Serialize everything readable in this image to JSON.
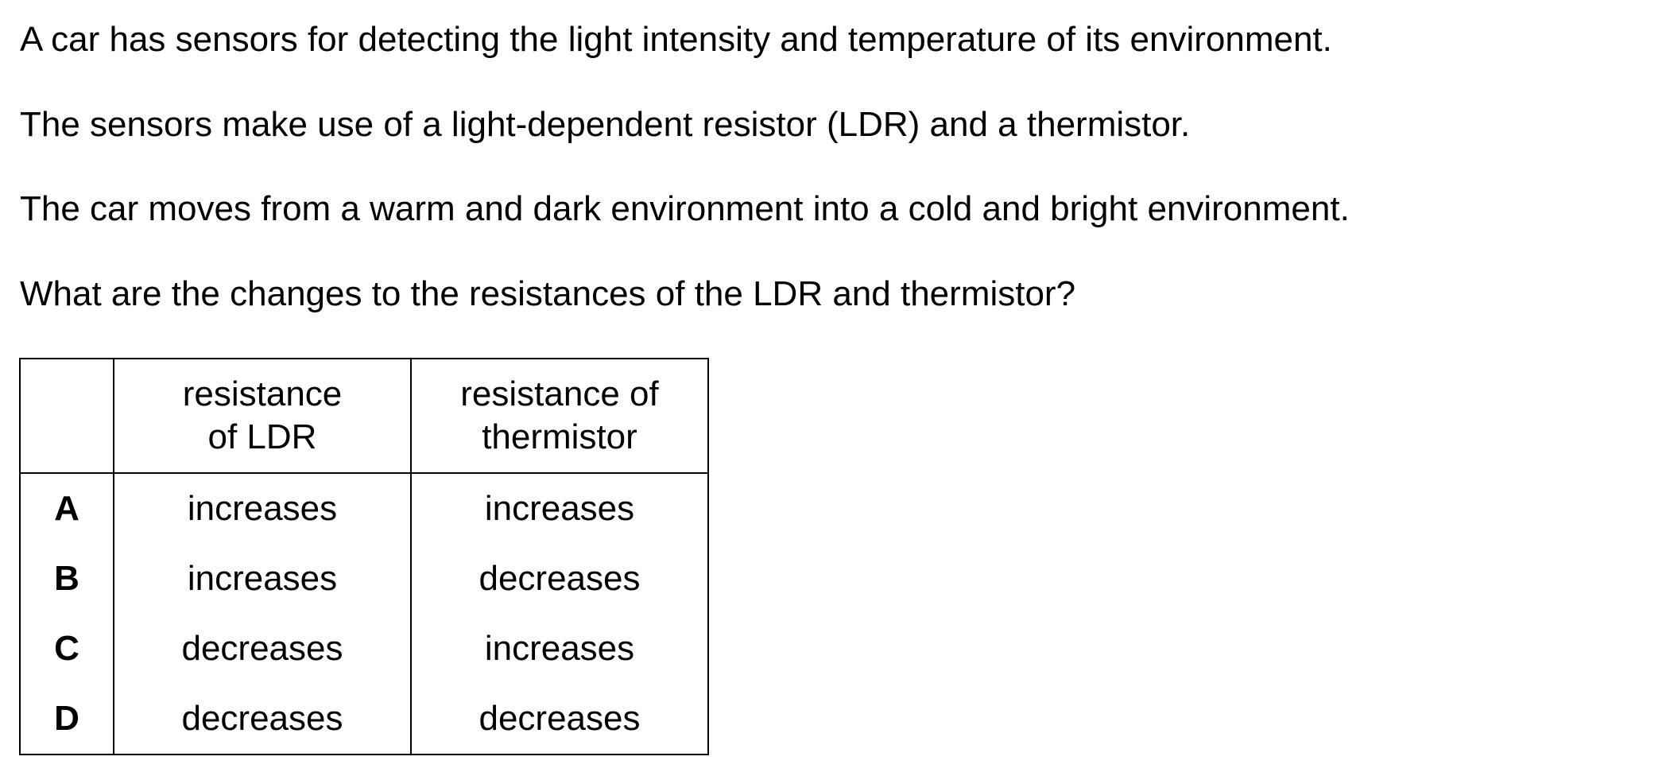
{
  "question": {
    "lines": [
      "A car has sensors for detecting the light intensity and temperature of its environment.",
      "The sensors make use of a light-dependent resistor (LDR) and a thermistor.",
      "The car moves from a warm and dark environment into a cold and bright environment.",
      "What are the changes to the resistances of the LDR and thermistor?"
    ]
  },
  "table": {
    "header": {
      "col1_line1": "resistance",
      "col1_line2": "of LDR",
      "col2_line1": "resistance of",
      "col2_line2": "thermistor"
    },
    "rows": [
      {
        "letter": "A",
        "ldr": "increases",
        "thermistor": "increases"
      },
      {
        "letter": "B",
        "ldr": "increases",
        "thermistor": "decreases"
      },
      {
        "letter": "C",
        "ldr": "decreases",
        "thermistor": "increases"
      },
      {
        "letter": "D",
        "ldr": "decreases",
        "thermistor": "decreases"
      }
    ]
  }
}
